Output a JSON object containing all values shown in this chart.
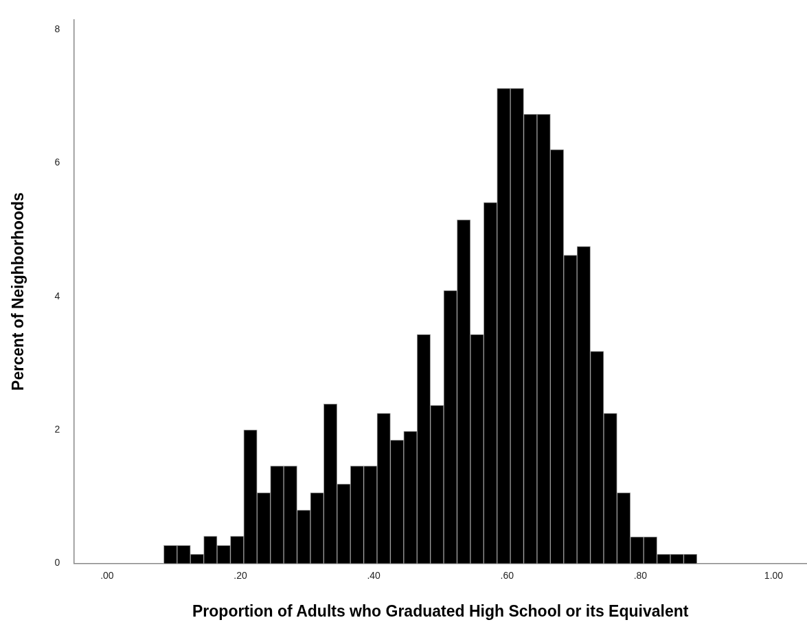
{
  "chart_data": {
    "type": "histogram",
    "xlabel": "Proportion of Adults who Graduated High School or its Equivalent",
    "ylabel": "Percent of Neighborhoods",
    "bins": [
      0.085,
      0.105,
      0.125,
      0.145,
      0.165,
      0.185,
      0.205,
      0.225,
      0.245,
      0.265,
      0.285,
      0.305,
      0.325,
      0.345,
      0.365,
      0.385,
      0.405,
      0.425,
      0.445,
      0.465,
      0.485,
      0.505,
      0.525,
      0.545,
      0.565,
      0.585,
      0.605,
      0.625,
      0.645,
      0.665,
      0.685,
      0.705,
      0.725,
      0.745,
      0.765,
      0.785,
      0.805,
      0.825,
      0.845,
      0.865,
      0.885
    ],
    "values": [
      0.27,
      0.27,
      0.14,
      0.41,
      0.27,
      0.41,
      2.0,
      1.06,
      1.46,
      1.46,
      0.8,
      1.06,
      2.39,
      1.19,
      1.46,
      1.46,
      2.25,
      1.85,
      1.98,
      3.43,
      2.37,
      4.09,
      5.15,
      3.43,
      5.41,
      7.12,
      7.12,
      6.73,
      6.73,
      6.2,
      4.62,
      4.75,
      3.18,
      2.25,
      1.06,
      0.4,
      0.4,
      0.14,
      0.14,
      0.14
    ],
    "color": "#000000",
    "xlim": [
      -0.05,
      1.05
    ],
    "xticks": [
      {
        "value": 0,
        "label": ".00"
      },
      {
        "value": 0.2,
        "label": ".20"
      },
      {
        "value": 0.4,
        "label": ".40"
      },
      {
        "value": 0.6,
        "label": ".60"
      },
      {
        "value": 0.8,
        "label": ".80"
      },
      {
        "value": 1,
        "label": "1.00"
      }
    ],
    "ylim": [
      0,
      8.15
    ],
    "yticks": [
      0,
      2,
      4,
      6,
      8
    ],
    "grid": false,
    "legend": false
  }
}
